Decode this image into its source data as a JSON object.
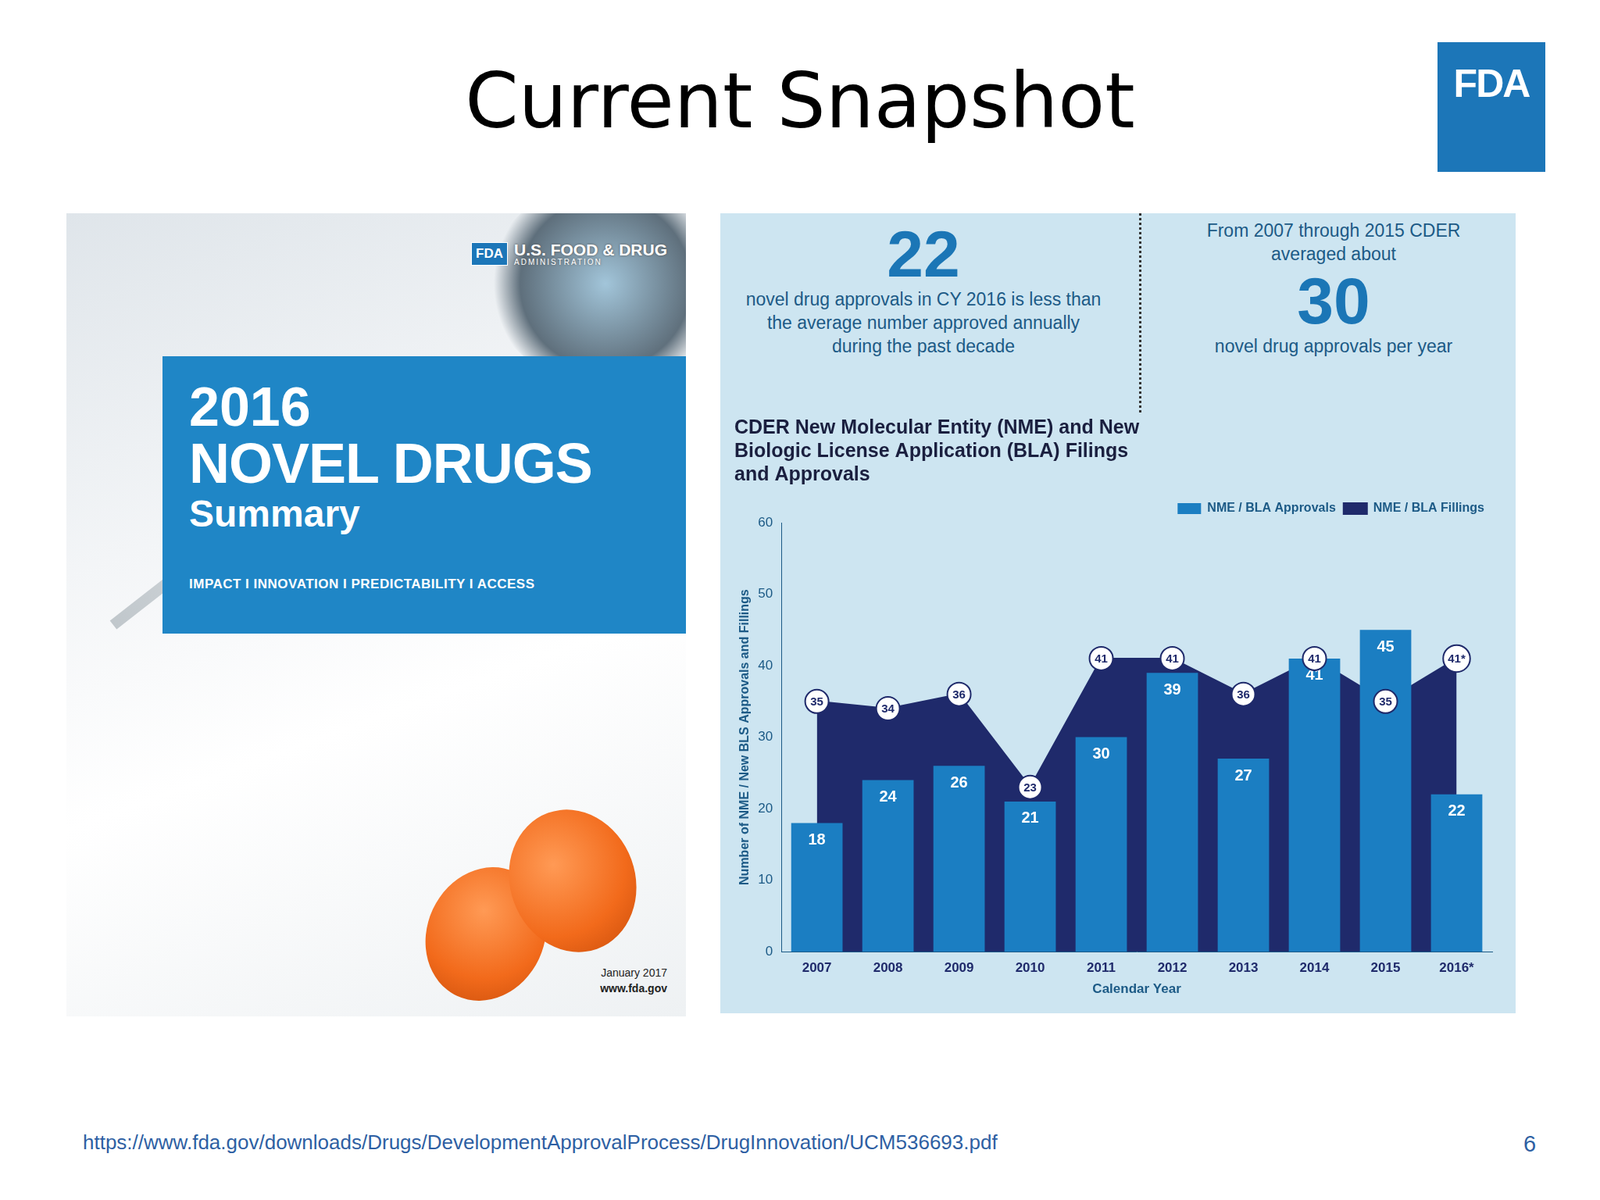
{
  "slide_title": "Current Snapshot",
  "logo": "FDA",
  "cover": {
    "logo": "FDA",
    "agency": "U.S. FOOD & DRUG",
    "agency_sub": "ADMINISTRATION",
    "year": "2016",
    "heading": "NOVEL DRUGS",
    "subheading": "Summary",
    "tagline": "IMPACT I INNOVATION I PREDICTABILITY I ACCESS",
    "date": "January 2017",
    "website": "www.fda.gov"
  },
  "stats": [
    {
      "number": "22",
      "text": "novel drug approvals in CY 2016 is less than the average number approved annually during the past decade"
    },
    {
      "pre": "From 2007 through 2015 CDER averaged about",
      "number": "30",
      "text": "novel drug approvals per year"
    }
  ],
  "chart_data": {
    "type": "bar",
    "title": "CDER New Molecular Entity (NME) and New Biologic License Application (BLA) Filings and Approvals",
    "categories": [
      "2007",
      "2008",
      "2009",
      "2010",
      "2011",
      "2012",
      "2013",
      "2014",
      "2015",
      "2016*"
    ],
    "series": [
      {
        "name": "NME / BLA Approvals",
        "type": "bar",
        "color": "#1b7ec2",
        "values": [
          18,
          24,
          26,
          21,
          30,
          39,
          27,
          41,
          45,
          22
        ]
      },
      {
        "name": "NME / BLA Fillings",
        "type": "area",
        "color": "#1f2a6b",
        "values": [
          35,
          34,
          36,
          23,
          41,
          41,
          36,
          41,
          35,
          41
        ],
        "value_labels": [
          "35",
          "34",
          "36",
          "23",
          "41",
          "41",
          "36",
          "41",
          "35",
          "41*"
        ]
      }
    ],
    "x_label": "Calendar Year",
    "y_label": "Number of NME / New BLS Approvals and Fillings",
    "ylim": [
      0,
      60
    ],
    "yticks": [
      0,
      10,
      20,
      30,
      40,
      50,
      60
    ],
    "grid": false,
    "legend": "top-right",
    "data_labels": true
  },
  "footer": {
    "source": "https://www.fda.gov/downloads/Drugs/DevelopmentApprovalProcess/DrugInnovation/UCM536693.pdf",
    "page": "6"
  }
}
